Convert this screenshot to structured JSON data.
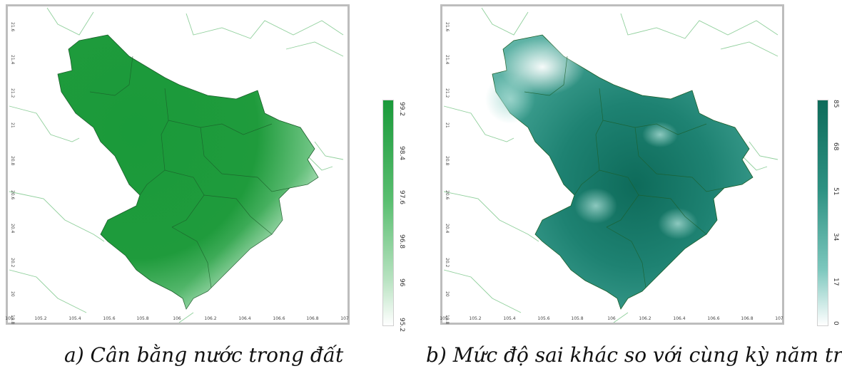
{
  "map_a": {
    "x_ticks": [
      "105",
      "105.2",
      "105.4",
      "105.6",
      "105.8",
      "106",
      "106.2",
      "106.4",
      "106.6",
      "106.8",
      "107"
    ],
    "y_ticks": [
      "21.6",
      "21.4",
      "21.2",
      "21",
      "20.8",
      "20.6",
      "20.4",
      "20.2",
      "20",
      "19.8"
    ],
    "colorbar_ticks": [
      "99.2",
      "98.4",
      "97.6",
      "96.8",
      "96",
      "95.2"
    ],
    "caption": "a) Cân bằng nước trong đất",
    "colors": {
      "high": "#1a9a3a",
      "low": "#ffffff"
    }
  },
  "map_b": {
    "x_ticks": [
      "105",
      "105.2",
      "105.4",
      "105.6",
      "105.8",
      "106",
      "106.2",
      "106.4",
      "106.6",
      "106.8",
      "107"
    ],
    "y_ticks": [
      "21.6",
      "21.4",
      "21.2",
      "21",
      "20.8",
      "20.6",
      "20.4",
      "20.2",
      "20",
      "19.8"
    ],
    "colorbar_ticks": [
      "85",
      "68",
      "51",
      "34",
      "17",
      "0"
    ],
    "caption": "b) Mức độ sai khác so với cùng kỳ năm trước",
    "colors": {
      "high": "#0e6b5a",
      "low": "#ffffff"
    }
  }
}
